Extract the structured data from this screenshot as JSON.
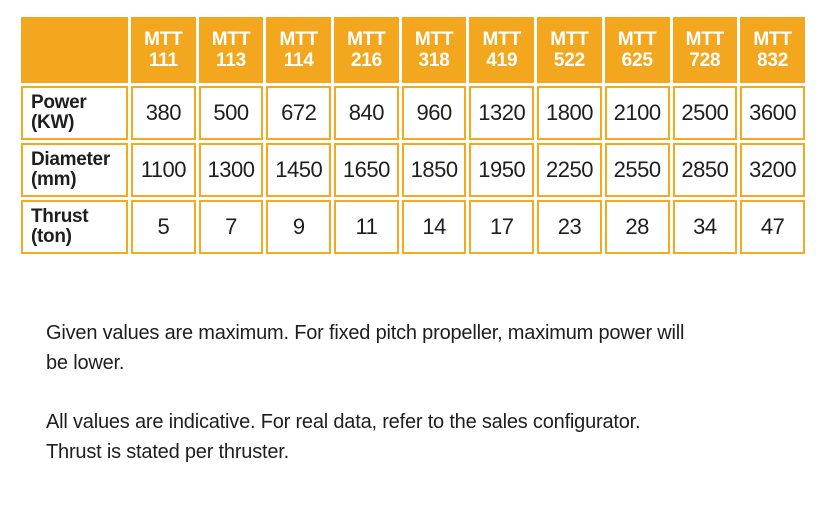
{
  "table": {
    "corner_label": "",
    "columns": [
      "MTT 111",
      "MTT 113",
      "MTT 114",
      "MTT 216",
      "MTT 318",
      "MTT 419",
      "MTT 522",
      "MTT 625",
      "MTT 728",
      "MTT 832"
    ],
    "rows": [
      {
        "label": "Power",
        "unit": "(KW)",
        "values": [
          "380",
          "500",
          "672",
          "840",
          "960",
          "1320",
          "1800",
          "2100",
          "2500",
          "3600"
        ]
      },
      {
        "label": "Diameter",
        "unit": "(mm)",
        "values": [
          "1100",
          "1300",
          "1450",
          "1650",
          "1850",
          "1950",
          "2250",
          "2550",
          "2850",
          "3200"
        ]
      },
      {
        "label": "Thrust",
        "unit": "(ton)",
        "values": [
          "5",
          "7",
          "9",
          "11",
          "14",
          "17",
          "23",
          "28",
          "34",
          "47"
        ]
      }
    ]
  },
  "notes": [
    {
      "lines": [
        "Given values are maximum. For fixed pitch propeller, maximum power will",
        "be lower."
      ]
    },
    {
      "lines": [
        "All values are indicative. For real data, refer to the sales configurator.",
        "Thrust is stated per thruster."
      ]
    }
  ],
  "colors": {
    "accent_orange": "#F2A71E",
    "grid_orange": "#F5A91E",
    "text": "#1E1E1E"
  }
}
